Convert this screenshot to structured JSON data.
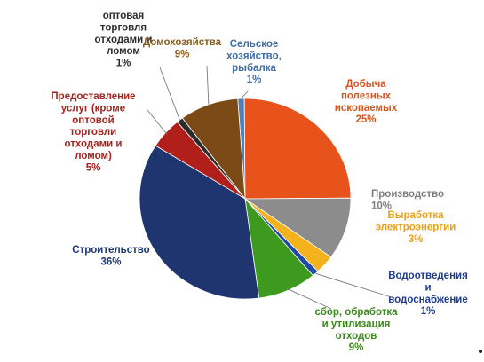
{
  "chart_data": {
    "type": "pie",
    "title": "",
    "start_slice": "Сельское хозяйство, рыбалка",
    "direction": "clockwise",
    "slices": [
      {
        "label": "Сельское хозяйство, рыбалка",
        "value": 1,
        "pct": "1%",
        "color": "#4f81bd"
      },
      {
        "label": "Добыча полезных ископаемых",
        "value": 25,
        "pct": "25%",
        "color": "#e8521b"
      },
      {
        "label": "Производство",
        "value": 10,
        "pct": "10%",
        "color": "#8c8c8c"
      },
      {
        "label": "Выработка электроэнергии",
        "value": 3,
        "pct": "3%",
        "color": "#f4b31c"
      },
      {
        "label": "Водоотведения и водоснабжение",
        "value": 1,
        "pct": "1%",
        "color": "#1f4aa8"
      },
      {
        "label": "сбор, обработка и утилизация отходов",
        "value": 9,
        "pct": "9%",
        "color": "#3e9a1f"
      },
      {
        "label": "Строительство",
        "value": 36,
        "pct": "36%",
        "color": "#1f3570"
      },
      {
        "label": "Предоставление услуг (кроме оптовой торговли отходами и ломом)",
        "value": 5,
        "pct": "5%",
        "color": "#b01f1a"
      },
      {
        "label": "оптовая торговля отходами и ломом",
        "value": 1,
        "pct": "1%",
        "color": "#2b2b2b"
      },
      {
        "label": "Домохозяйства",
        "value": 9,
        "pct": "9%",
        "color": "#7b4a17"
      }
    ],
    "labels": [
      {
        "lines": [
          "Сельское",
          "хозяйство,",
          "рыбалка",
          "1%"
        ],
        "color": "#3f6ea6"
      },
      {
        "lines": [
          "Добыча",
          "полезных",
          "ископаемых",
          "25%"
        ],
        "color": "#d9531e"
      },
      {
        "lines": [
          "Производство",
          "10%"
        ],
        "color": "#7f7f7f"
      },
      {
        "lines": [
          "Выработка",
          "электроэнергии",
          "3%"
        ],
        "color": "#e9a11a"
      },
      {
        "lines": [
          "Водоотведения",
          "и",
          "водоснабжение",
          "1%"
        ],
        "color": "#1f3c8a"
      },
      {
        "lines": [
          "сбор, обработка",
          "и утилизация",
          "отходов",
          "9%"
        ],
        "color": "#3a8a1c"
      },
      {
        "lines": [
          "Строительство",
          "36%"
        ],
        "color": "#1f3570"
      },
      {
        "lines": [
          "Предоставление",
          "услуг (кроме",
          "оптовой",
          "торговли",
          "отходами и",
          "ломом)",
          "5%"
        ],
        "color": "#a1241f"
      },
      {
        "lines": [
          "оптовая",
          "торговля",
          "отходами и",
          "ломом",
          "1%"
        ],
        "color": "#2b2b2b"
      },
      {
        "lines": [
          "Домохозяйства",
          "9%"
        ],
        "color": "#8a5a1a"
      }
    ]
  }
}
